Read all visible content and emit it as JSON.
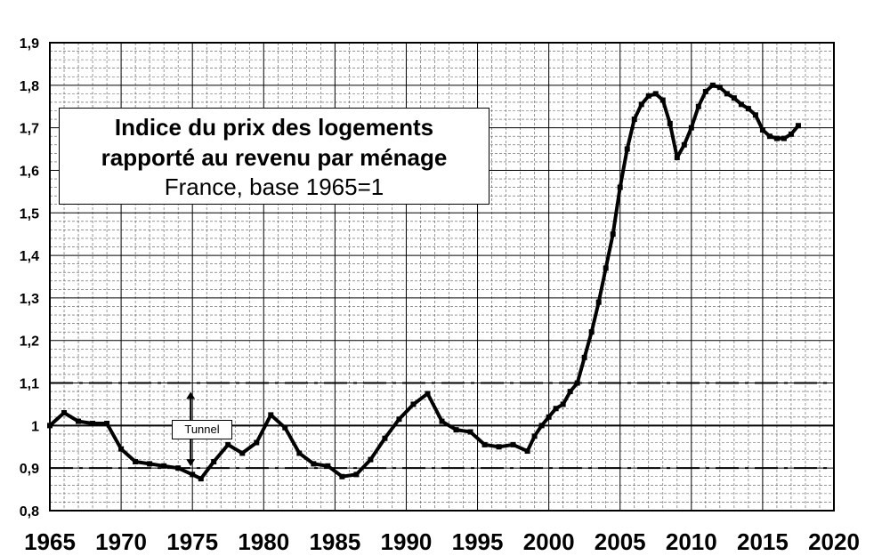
{
  "chart_data": {
    "type": "line",
    "title": "Indice du prix des logements",
    "title_line2": "rapporté au revenu par ménage",
    "subtitle": "France, base 1965=1",
    "xlabel": "",
    "ylabel": "",
    "xlim": [
      1965,
      2020
    ],
    "ylim": [
      0.8,
      1.9
    ],
    "x_ticks": [
      "1965",
      "1970",
      "1975",
      "1980",
      "1985",
      "1990",
      "1995",
      "2000",
      "2005",
      "2010",
      "2015",
      "2020"
    ],
    "y_ticks": [
      "0,8",
      "0,9",
      "1",
      "1,1",
      "1,2",
      "1,3",
      "1,4",
      "1,5",
      "1,6",
      "1,7",
      "1,8",
      "1,9"
    ],
    "grid": true,
    "legend": "none",
    "reference_lines": [
      {
        "y": 1.0,
        "style": "solid"
      },
      {
        "y": 1.1,
        "style": "dash-dot"
      },
      {
        "y": 0.9,
        "style": "dash-dot"
      }
    ],
    "annotation": {
      "text": "Tunnel",
      "x": 1975,
      "from_y": 0.9,
      "to_y": 1.1
    },
    "series": [
      {
        "color": "#000000",
        "x": [
          1965,
          1966,
          1967,
          1968,
          1969,
          1970,
          1971,
          1972,
          1973,
          1974,
          1975,
          1975.6,
          1976.5,
          1977.5,
          1978.5,
          1979.5,
          1980.5,
          1981.5,
          1982.5,
          1983.5,
          1984.5,
          1985.5,
          1986.5,
          1987.5,
          1988.5,
          1989.5,
          1990.5,
          1991.5,
          1992.5,
          1993.5,
          1994.5,
          1995.5,
          1996.5,
          1997.5,
          1998.5,
          1999,
          1999.5,
          2000,
          2000.5,
          2001,
          2001.5,
          2002,
          2002.5,
          2003,
          2003.5,
          2004,
          2004.5,
          2005,
          2005.5,
          2006,
          2006.5,
          2007,
          2007.5,
          2008,
          2008.5,
          2009,
          2009.5,
          2010,
          2010.5,
          2011,
          2011.5,
          2012,
          2012.5,
          2013,
          2013.5,
          2014,
          2014.5,
          2015,
          2015.5,
          2016,
          2016.5,
          2017,
          2017.5
        ],
        "y": [
          1.0,
          1.03,
          1.01,
          1.005,
          1.005,
          0.945,
          0.915,
          0.91,
          0.905,
          0.9,
          0.885,
          0.875,
          0.915,
          0.955,
          0.935,
          0.96,
          1.025,
          0.995,
          0.935,
          0.91,
          0.905,
          0.88,
          0.885,
          0.92,
          0.97,
          1.015,
          1.05,
          1.075,
          1.01,
          0.99,
          0.985,
          0.955,
          0.95,
          0.955,
          0.94,
          0.975,
          1.0,
          1.02,
          1.04,
          1.05,
          1.08,
          1.1,
          1.16,
          1.22,
          1.29,
          1.37,
          1.45,
          1.56,
          1.65,
          1.72,
          1.755,
          1.775,
          1.78,
          1.765,
          1.71,
          1.63,
          1.66,
          1.7,
          1.75,
          1.785,
          1.8,
          1.795,
          1.78,
          1.77,
          1.755,
          1.745,
          1.73,
          1.695,
          1.68,
          1.675,
          1.675,
          1.685,
          1.705
        ]
      }
    ]
  }
}
